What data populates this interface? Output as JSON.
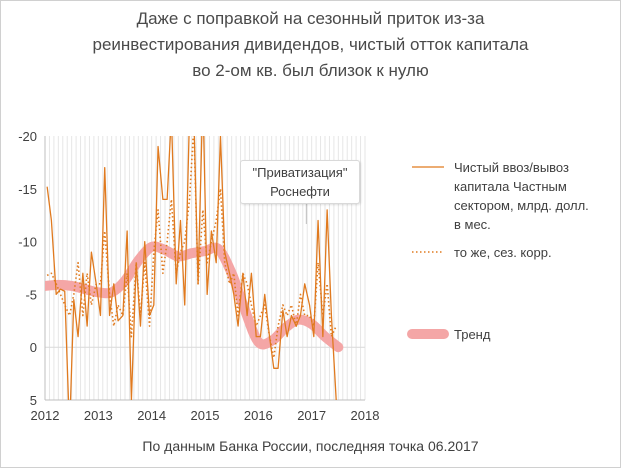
{
  "chart_data": {
    "type": "line",
    "title_lines": [
      "Даже с поправкой на сезонный приток из-за",
      "реинвестирования дивидендов, чистый отток капитала",
      "во 2-ом кв. был близок к нулю"
    ],
    "source_note": "По данным Банка России, последняя точка 06.2017",
    "annotation_lines": [
      "\"Приватизация\"",
      "Роснефти"
    ],
    "annotation_x": 2016.9,
    "ylim": [
      -20,
      5
    ],
    "y_inverted": true,
    "y_ticks": [
      -20,
      -15,
      -10,
      -5,
      0,
      5
    ],
    "y_tick_labels": [
      "-20",
      "-15",
      "-10",
      "-5",
      "0",
      "5"
    ],
    "xlim": [
      2012,
      2018
    ],
    "x_ticks": [
      2012,
      2013,
      2014,
      2015,
      2016,
      2017,
      2018
    ],
    "x_tick_labels": [
      "2012",
      "2013",
      "2014",
      "2015",
      "2016",
      "2017",
      "2018"
    ],
    "grid": "vertical-months",
    "colors": {
      "series": "#e07a1f",
      "trend": "#f4a6a6",
      "grid": "#e6e6e6"
    },
    "legend": {
      "position": "right",
      "items": [
        {
          "style": "solid",
          "lines": [
            "Чистый ввоз/вывоз",
            "капитала Частным",
            "сектором, млрд. долл.",
            "в мес."
          ]
        },
        {
          "style": "dotted",
          "lines": [
            "то же, сез. корр."
          ]
        },
        {
          "style": "thick",
          "lines": [
            "Тренд"
          ]
        }
      ]
    },
    "series": [
      {
        "style": "solid",
        "x": [
          2012.04,
          2012.12,
          2012.21,
          2012.29,
          2012.37,
          2012.46,
          2012.54,
          2012.62,
          2012.71,
          2012.79,
          2012.87,
          2012.96,
          2013.04,
          2013.12,
          2013.21,
          2013.29,
          2013.37,
          2013.46,
          2013.54,
          2013.62,
          2013.71,
          2013.79,
          2013.87,
          2013.96,
          2014.04,
          2014.12,
          2014.21,
          2014.29,
          2014.37,
          2014.46,
          2014.54,
          2014.62,
          2014.71,
          2014.79,
          2014.87,
          2014.96,
          2015.04,
          2015.12,
          2015.21,
          2015.29,
          2015.37,
          2015.46,
          2015.54,
          2015.62,
          2015.71,
          2015.79,
          2015.87,
          2015.96,
          2016.04,
          2016.12,
          2016.21,
          2016.29,
          2016.37,
          2016.46,
          2016.54,
          2016.62,
          2016.71,
          2016.79,
          2016.87,
          2016.96,
          2017.04,
          2017.12,
          2017.21,
          2017.29,
          2017.37,
          2017.46
        ],
        "y": [
          -15.2,
          -12,
          -5,
          -5.5,
          -5.3,
          8,
          -4.5,
          -1,
          -7,
          -2,
          -9,
          -6,
          -3,
          -17,
          -3,
          -6,
          -2.5,
          -3,
          -11,
          5,
          -8,
          -2,
          -10,
          -3,
          -4,
          -19,
          -14,
          -14,
          -22,
          -6,
          -12,
          -4,
          -22,
          -22,
          -6,
          -24,
          -5,
          -11,
          -8,
          -20,
          -9,
          -7,
          -5,
          -2,
          -7,
          -3,
          -7,
          -1,
          -1,
          -5,
          -1,
          2,
          2,
          -3.5,
          -1,
          -3,
          -2,
          -3,
          -6,
          -4,
          -1,
          -12,
          -1,
          -13,
          -3,
          5
        ]
      },
      {
        "style": "dotted",
        "x": [
          2012.04,
          2012.12,
          2012.21,
          2012.29,
          2012.37,
          2012.46,
          2012.54,
          2012.62,
          2012.71,
          2012.79,
          2012.87,
          2012.96,
          2013.04,
          2013.12,
          2013.21,
          2013.29,
          2013.37,
          2013.46,
          2013.54,
          2013.62,
          2013.71,
          2013.79,
          2013.87,
          2013.96,
          2014.04,
          2014.12,
          2014.21,
          2014.29,
          2014.37,
          2014.46,
          2014.54,
          2014.62,
          2014.71,
          2014.79,
          2014.87,
          2014.96,
          2015.04,
          2015.12,
          2015.21,
          2015.29,
          2015.37,
          2015.46,
          2015.54,
          2015.62,
          2015.71,
          2015.79,
          2015.87,
          2015.96,
          2016.04,
          2016.12,
          2016.21,
          2016.29,
          2016.37,
          2016.46,
          2016.54,
          2016.62,
          2016.71,
          2016.79,
          2016.87,
          2016.96,
          2017.04,
          2017.12,
          2017.21,
          2017.29,
          2017.37,
          2017.46
        ],
        "y": [
          -6.8,
          -7,
          -6,
          -5,
          -4,
          -3,
          -5,
          -8,
          -3,
          -7,
          -4,
          -6,
          -6,
          -11,
          -5,
          -2,
          -4,
          -3,
          -7,
          -1,
          -8,
          -3,
          -8,
          -2,
          -9,
          -13,
          -7,
          -10,
          -14,
          -7,
          -9,
          -10,
          -14,
          -21,
          -6,
          -13,
          -8,
          -10,
          -12,
          -15,
          -8,
          -6,
          -7,
          -3,
          -7,
          -6,
          -4,
          -2,
          -3,
          -4,
          -1,
          1,
          -2,
          -4,
          -3,
          -4,
          -2,
          -5,
          -3,
          -3,
          -2,
          -8,
          -3,
          -6,
          -1,
          -2
        ]
      },
      {
        "style": "thick",
        "name": "Тренд",
        "x": [
          2012.0,
          2012.25,
          2012.5,
          2012.75,
          2013.0,
          2013.25,
          2013.5,
          2013.75,
          2014.0,
          2014.25,
          2014.5,
          2014.75,
          2015.0,
          2015.25,
          2015.5,
          2015.75,
          2016.0,
          2016.25,
          2016.5,
          2016.75,
          2017.0,
          2017.25,
          2017.5
        ],
        "y": [
          -5.8,
          -5.9,
          -5.8,
          -5.5,
          -5.2,
          -5.2,
          -6.3,
          -8.2,
          -9.5,
          -9.2,
          -8.6,
          -8.9,
          -9.1,
          -9.3,
          -7.0,
          -3.5,
          -0.5,
          -0.6,
          -1.8,
          -2.6,
          -2.2,
          -1.0,
          0.0
        ]
      }
    ]
  }
}
